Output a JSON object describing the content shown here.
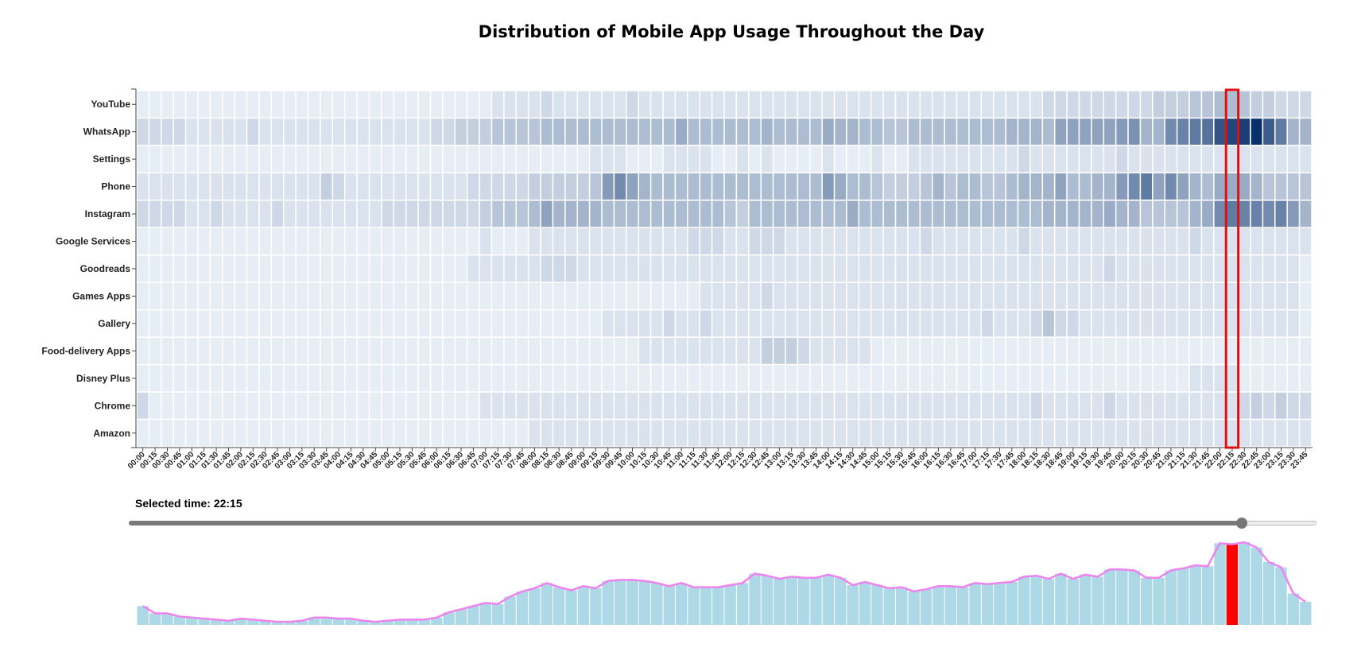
{
  "title": "Distribution of Mobile App Usage Throughout the Day",
  "selected_time_label": "Selected time: 22:15",
  "colors": {
    "heat_low": "#f7fbff",
    "heat_high": "#08306b",
    "highlight_stroke": "#e01010",
    "bar_fill": "#add8e6",
    "bar_selected": "#ff0000",
    "line": "#ee82ee",
    "slider_fill": "#7a7a7a"
  },
  "chart_data": {
    "type": "heatmap",
    "apps": [
      "YouTube",
      "WhatsApp",
      "Settings",
      "Phone",
      "Instagram",
      "Google Services",
      "Goodreads",
      "Games Apps",
      "Gallery",
      "Food-delivery Apps",
      "Disney Plus",
      "Chrome",
      "Amazon"
    ],
    "times": [
      "00:00",
      "00:15",
      "00:30",
      "00:45",
      "01:00",
      "01:15",
      "01:30",
      "01:45",
      "02:00",
      "02:15",
      "02:30",
      "02:45",
      "03:00",
      "03:15",
      "03:30",
      "03:45",
      "04:00",
      "04:15",
      "04:30",
      "04:45",
      "05:00",
      "05:15",
      "05:30",
      "05:45",
      "06:00",
      "06:15",
      "06:30",
      "06:45",
      "07:00",
      "07:15",
      "07:30",
      "07:45",
      "08:00",
      "08:15",
      "08:30",
      "08:45",
      "09:00",
      "09:15",
      "09:30",
      "09:45",
      "10:00",
      "10:15",
      "10:30",
      "10:45",
      "11:00",
      "11:15",
      "11:30",
      "11:45",
      "12:00",
      "12:15",
      "12:30",
      "12:45",
      "13:00",
      "13:15",
      "13:30",
      "13:45",
      "14:00",
      "14:15",
      "14:30",
      "14:45",
      "15:00",
      "15:15",
      "15:30",
      "15:45",
      "16:00",
      "16:15",
      "16:30",
      "16:45",
      "17:00",
      "17:15",
      "17:30",
      "17:45",
      "18:00",
      "18:15",
      "18:30",
      "18:45",
      "19:00",
      "19:15",
      "19:30",
      "19:45",
      "20:00",
      "20:15",
      "20:30",
      "20:45",
      "21:00",
      "21:15",
      "21:30",
      "21:45",
      "22:00",
      "22:15",
      "22:30",
      "22:45",
      "23:00",
      "23:15",
      "23:30",
      "23:45"
    ],
    "values": [
      [
        1,
        1,
        1,
        1,
        1,
        1,
        1,
        1,
        1,
        1,
        1,
        1,
        1,
        1,
        1,
        1,
        1,
        1,
        1,
        1,
        1,
        1,
        1,
        1,
        1,
        1,
        1,
        1,
        1,
        2,
        2,
        2,
        2,
        3,
        2,
        2,
        2,
        2,
        2,
        2,
        3,
        2,
        2,
        2,
        2,
        2,
        2,
        2,
        2,
        2,
        2,
        2,
        2,
        2,
        2,
        2,
        2,
        2,
        2,
        2,
        2,
        2,
        2,
        2,
        2,
        2,
        2,
        2,
        2,
        2,
        2,
        2,
        2,
        2,
        3,
        3,
        3,
        3,
        3,
        3,
        3,
        3,
        3,
        4,
        4,
        4,
        5,
        5,
        6,
        6,
        5,
        4,
        4,
        3,
        3,
        3
      ],
      [
        3,
        3,
        3,
        3,
        2,
        2,
        2,
        2,
        2,
        3,
        2,
        2,
        2,
        2,
        2,
        2,
        2,
        2,
        2,
        2,
        2,
        2,
        2,
        2,
        3,
        3,
        4,
        4,
        4,
        5,
        5,
        5,
        5,
        6,
        6,
        6,
        6,
        6,
        6,
        6,
        6,
        6,
        6,
        6,
        8,
        6,
        6,
        6,
        6,
        6,
        6,
        7,
        6,
        6,
        6,
        6,
        8,
        7,
        7,
        6,
        6,
        5,
        5,
        6,
        6,
        6,
        6,
        6,
        6,
        6,
        6,
        7,
        7,
        7,
        6,
        9,
        9,
        9,
        9,
        9,
        10,
        11,
        7,
        7,
        12,
        13,
        14,
        15,
        19,
        21,
        22,
        24,
        18,
        14,
        7,
        7
      ],
      [
        1,
        1,
        1,
        1,
        1,
        1,
        1,
        1,
        1,
        1,
        1,
        1,
        1,
        1,
        1,
        1,
        1,
        1,
        1,
        1,
        1,
        1,
        1,
        1,
        1,
        1,
        1,
        1,
        1,
        1,
        1,
        1,
        1,
        1,
        1,
        1,
        1,
        2,
        2,
        2,
        1,
        1,
        1,
        2,
        2,
        2,
        2,
        1,
        1,
        2,
        1,
        2,
        1,
        1,
        1,
        1,
        2,
        1,
        1,
        1,
        2,
        1,
        1,
        2,
        2,
        2,
        2,
        2,
        2,
        2,
        2,
        2,
        3,
        2,
        2,
        2,
        2,
        2,
        2,
        2,
        3,
        2,
        2,
        2,
        2,
        2,
        2,
        2,
        2,
        2,
        2,
        2,
        2,
        2,
        2,
        2
      ],
      [
        2,
        2,
        2,
        2,
        2,
        2,
        2,
        2,
        2,
        2,
        2,
        2,
        2,
        2,
        2,
        4,
        3,
        2,
        2,
        2,
        2,
        2,
        2,
        2,
        2,
        2,
        2,
        3,
        3,
        3,
        3,
        3,
        4,
        4,
        4,
        4,
        4,
        5,
        10,
        12,
        9,
        7,
        6,
        6,
        6,
        6,
        6,
        6,
        6,
        6,
        6,
        6,
        6,
        6,
        6,
        6,
        10,
        8,
        6,
        6,
        5,
        4,
        4,
        4,
        5,
        7,
        5,
        6,
        6,
        5,
        5,
        6,
        7,
        7,
        7,
        9,
        6,
        6,
        7,
        7,
        10,
        12,
        14,
        9,
        12,
        9,
        7,
        6,
        8,
        8,
        8,
        7,
        5,
        5,
        5,
        5
      ],
      [
        3,
        3,
        3,
        3,
        2,
        2,
        3,
        2,
        2,
        2,
        2,
        3,
        2,
        2,
        2,
        2,
        2,
        2,
        2,
        2,
        3,
        3,
        3,
        3,
        3,
        3,
        3,
        3,
        4,
        5,
        5,
        5,
        6,
        9,
        7,
        7,
        7,
        7,
        6,
        6,
        6,
        6,
        6,
        6,
        6,
        6,
        6,
        6,
        5,
        4,
        6,
        6,
        6,
        6,
        6,
        6,
        6,
        6,
        8,
        6,
        6,
        6,
        6,
        6,
        6,
        6,
        6,
        6,
        6,
        6,
        6,
        6,
        6,
        6,
        7,
        7,
        7,
        7,
        7,
        8,
        7,
        7,
        5,
        5,
        5,
        5,
        7,
        8,
        12,
        14,
        13,
        13,
        12,
        13,
        10,
        7
      ],
      [
        1,
        1,
        1,
        1,
        1,
        1,
        1,
        1,
        1,
        1,
        1,
        1,
        1,
        1,
        1,
        1,
        1,
        1,
        1,
        1,
        1,
        1,
        1,
        1,
        1,
        1,
        1,
        1,
        2,
        1,
        1,
        1,
        2,
        2,
        2,
        2,
        2,
        2,
        2,
        2,
        2,
        2,
        2,
        2,
        2,
        3,
        3,
        3,
        2,
        2,
        3,
        3,
        3,
        2,
        2,
        2,
        2,
        2,
        2,
        2,
        2,
        2,
        2,
        2,
        3,
        2,
        2,
        2,
        2,
        2,
        2,
        2,
        3,
        2,
        2,
        2,
        2,
        2,
        2,
        2,
        2,
        2,
        2,
        2,
        2,
        2,
        3,
        2,
        2,
        2,
        2,
        2,
        2,
        2,
        2,
        2
      ],
      [
        1,
        1,
        1,
        1,
        1,
        1,
        1,
        1,
        1,
        1,
        1,
        1,
        1,
        1,
        1,
        1,
        1,
        1,
        1,
        1,
        1,
        1,
        1,
        1,
        1,
        1,
        1,
        2,
        2,
        2,
        2,
        2,
        2,
        3,
        3,
        3,
        2,
        2,
        2,
        2,
        2,
        2,
        2,
        2,
        2,
        2,
        2,
        2,
        2,
        2,
        2,
        2,
        2,
        2,
        2,
        2,
        2,
        2,
        2,
        2,
        2,
        2,
        2,
        2,
        2,
        2,
        2,
        2,
        2,
        2,
        2,
        2,
        2,
        2,
        2,
        2,
        2,
        2,
        2,
        3,
        2,
        2,
        2,
        2,
        2,
        2,
        2,
        2,
        2,
        2,
        2,
        2,
        2,
        2,
        2,
        1
      ],
      [
        1,
        1,
        1,
        1,
        1,
        1,
        1,
        1,
        1,
        1,
        1,
        1,
        1,
        1,
        1,
        1,
        1,
        1,
        1,
        1,
        1,
        1,
        1,
        1,
        1,
        1,
        1,
        1,
        1,
        1,
        1,
        1,
        1,
        1,
        1,
        1,
        1,
        1,
        1,
        1,
        1,
        1,
        1,
        1,
        1,
        1,
        2,
        2,
        2,
        2,
        2,
        3,
        2,
        2,
        2,
        2,
        2,
        2,
        2,
        2,
        2,
        2,
        2,
        2,
        2,
        2,
        2,
        2,
        2,
        2,
        2,
        2,
        2,
        2,
        2,
        2,
        2,
        2,
        2,
        2,
        2,
        2,
        2,
        2,
        2,
        2,
        2,
        2,
        2,
        2,
        2,
        2,
        2,
        2,
        2,
        1
      ],
      [
        1,
        1,
        1,
        1,
        1,
        1,
        1,
        1,
        1,
        1,
        1,
        1,
        1,
        1,
        1,
        1,
        1,
        1,
        1,
        1,
        1,
        1,
        1,
        1,
        1,
        1,
        1,
        1,
        1,
        1,
        1,
        1,
        1,
        1,
        1,
        1,
        1,
        1,
        2,
        2,
        2,
        2,
        2,
        3,
        2,
        2,
        3,
        2,
        2,
        2,
        2,
        2,
        2,
        2,
        2,
        2,
        2,
        2,
        2,
        2,
        2,
        2,
        2,
        2,
        2,
        2,
        2,
        2,
        2,
        3,
        2,
        2,
        2,
        3,
        5,
        3,
        3,
        2,
        2,
        2,
        2,
        2,
        2,
        2,
        2,
        2,
        2,
        2,
        2,
        2,
        2,
        2,
        2,
        2,
        2,
        1
      ],
      [
        1,
        1,
        1,
        1,
        1,
        1,
        1,
        1,
        1,
        1,
        1,
        1,
        1,
        1,
        1,
        1,
        1,
        1,
        1,
        1,
        1,
        1,
        1,
        1,
        1,
        1,
        1,
        1,
        1,
        1,
        1,
        1,
        1,
        1,
        1,
        1,
        1,
        1,
        1,
        1,
        1,
        2,
        2,
        2,
        2,
        2,
        2,
        2,
        2,
        2,
        2,
        4,
        4,
        4,
        3,
        2,
        2,
        2,
        2,
        2,
        1,
        1,
        1,
        1,
        1,
        1,
        1,
        1,
        1,
        1,
        1,
        1,
        1,
        1,
        1,
        1,
        1,
        1,
        1,
        1,
        1,
        1,
        1,
        1,
        1,
        1,
        1,
        1,
        1,
        1,
        1,
        1,
        1,
        1,
        1,
        1
      ],
      [
        1,
        1,
        1,
        1,
        1,
        1,
        1,
        1,
        1,
        1,
        1,
        1,
        1,
        1,
        1,
        1,
        1,
        1,
        1,
        1,
        1,
        1,
        1,
        1,
        1,
        1,
        1,
        1,
        1,
        1,
        1,
        1,
        1,
        1,
        1,
        1,
        1,
        1,
        1,
        1,
        1,
        1,
        1,
        1,
        1,
        1,
        1,
        1,
        1,
        1,
        1,
        1,
        1,
        1,
        1,
        1,
        1,
        1,
        1,
        1,
        1,
        1,
        1,
        1,
        1,
        1,
        1,
        1,
        1,
        1,
        1,
        1,
        1,
        1,
        1,
        1,
        1,
        1,
        1,
        1,
        1,
        1,
        1,
        1,
        1,
        1,
        2,
        2,
        2,
        2,
        1,
        1,
        1,
        1,
        1,
        1
      ],
      [
        3,
        1,
        1,
        1,
        1,
        1,
        1,
        1,
        1,
        1,
        1,
        1,
        1,
        1,
        1,
        1,
        1,
        1,
        1,
        1,
        1,
        1,
        1,
        1,
        1,
        1,
        1,
        1,
        2,
        2,
        2,
        2,
        2,
        2,
        2,
        2,
        2,
        2,
        2,
        2,
        2,
        2,
        2,
        2,
        2,
        2,
        2,
        2,
        2,
        2,
        2,
        2,
        2,
        2,
        2,
        2,
        2,
        2,
        2,
        2,
        2,
        2,
        2,
        2,
        2,
        2,
        2,
        2,
        2,
        2,
        2,
        2,
        2,
        3,
        2,
        2,
        2,
        2,
        2,
        3,
        2,
        2,
        2,
        2,
        2,
        2,
        2,
        2,
        2,
        2,
        3,
        4,
        3,
        4,
        3,
        3
      ],
      [
        1,
        1,
        1,
        1,
        1,
        1,
        1,
        1,
        1,
        1,
        1,
        1,
        1,
        1,
        1,
        1,
        1,
        1,
        1,
        1,
        1,
        1,
        1,
        1,
        1,
        1,
        1,
        1,
        1,
        1,
        1,
        1,
        2,
        2,
        2,
        2,
        2,
        2,
        2,
        2,
        2,
        2,
        2,
        2,
        2,
        2,
        2,
        2,
        2,
        2,
        2,
        2,
        2,
        2,
        2,
        2,
        2,
        2,
        2,
        2,
        2,
        2,
        2,
        2,
        2,
        2,
        2,
        2,
        2,
        2,
        2,
        2,
        2,
        2,
        2,
        2,
        2,
        2,
        2,
        2,
        2,
        2,
        2,
        2,
        2,
        2,
        2,
        2,
        2,
        2,
        2,
        2,
        2,
        2,
        2,
        2
      ]
    ],
    "totals": [
      18,
      11,
      11,
      8,
      7,
      6,
      5,
      4,
      6,
      5,
      4,
      3,
      3,
      4,
      7,
      7,
      6,
      6,
      4,
      3,
      4,
      5,
      5,
      5,
      7,
      12,
      15,
      18,
      21,
      20,
      27,
      32,
      35,
      40,
      36,
      33,
      37,
      35,
      42,
      43,
      43,
      42,
      40,
      37,
      40,
      36,
      36,
      36,
      38,
      40,
      49,
      47,
      44,
      46,
      45,
      45,
      48,
      45,
      38,
      41,
      38,
      35,
      36,
      32,
      34,
      37,
      37,
      36,
      40,
      39,
      40,
      41,
      46,
      47,
      44,
      49,
      44,
      48,
      46,
      53,
      53,
      52,
      45,
      45,
      52,
      54,
      57,
      56,
      78,
      77,
      79,
      74,
      60,
      55,
      30,
      22
    ],
    "selected_time": "22:15",
    "selected_index": 89
  }
}
